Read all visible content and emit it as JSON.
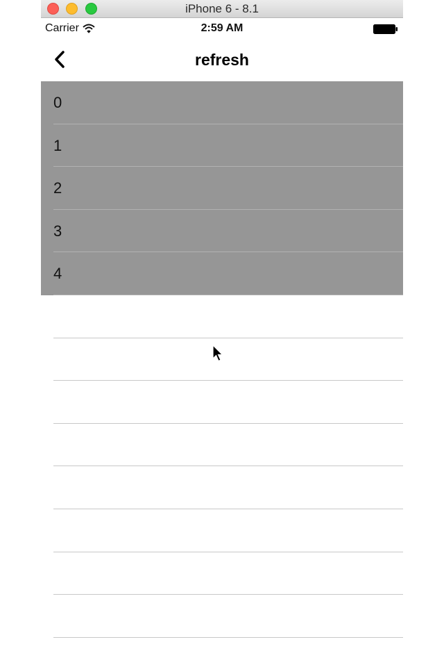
{
  "window": {
    "title": "iPhone 6 - 8.1"
  },
  "status_bar": {
    "carrier": "Carrier",
    "time": "2:59 AM",
    "icons": [
      "wifi-icon",
      "battery-icon"
    ]
  },
  "nav_bar": {
    "back_icon": "chevron-left-icon",
    "title": "refresh"
  },
  "table": {
    "rows": [
      {
        "label": "0",
        "highlighted": true
      },
      {
        "label": "1",
        "highlighted": true
      },
      {
        "label": "2",
        "highlighted": true
      },
      {
        "label": "3",
        "highlighted": true
      },
      {
        "label": "4",
        "highlighted": true
      },
      {
        "label": "",
        "highlighted": false
      },
      {
        "label": "",
        "highlighted": false
      },
      {
        "label": "",
        "highlighted": false
      },
      {
        "label": "",
        "highlighted": false
      },
      {
        "label": "",
        "highlighted": false
      },
      {
        "label": "",
        "highlighted": false
      },
      {
        "label": "",
        "highlighted": false
      },
      {
        "label": "",
        "highlighted": false
      }
    ]
  },
  "colors": {
    "highlight_row": "#969696",
    "separator": "#c8c8c8",
    "close": "#fc5f57",
    "minimize": "#fdbc2e",
    "maximize": "#29c940"
  }
}
